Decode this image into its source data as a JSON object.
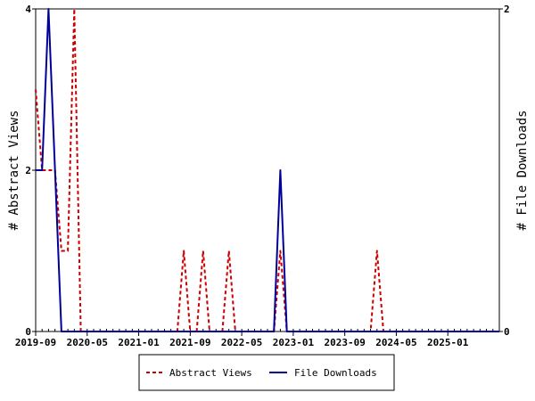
{
  "chart_data": {
    "type": "line",
    "title": "",
    "xlabel": "",
    "ylabel_left": "# Abstract Views",
    "ylabel_right": "# File Downloads",
    "x_range": [
      "2019-09",
      "2025-09"
    ],
    "x_ticks": [
      "2019-09",
      "2020-05",
      "2021-01",
      "2021-09",
      "2022-05",
      "2023-01",
      "2023-09",
      "2024-05",
      "2025-01"
    ],
    "ylim_left": [
      0,
      4
    ],
    "yticks_left": [
      "0",
      "2",
      "4"
    ],
    "ylim_right": [
      0,
      2
    ],
    "yticks_right": [
      "0",
      "2"
    ],
    "grid": false,
    "legend_position": "bottom-center",
    "series": [
      {
        "name": "Abstract Views",
        "axis": "left",
        "color": "#cc0000",
        "dash": "dashed",
        "points": [
          [
            "2019-09",
            3
          ],
          [
            "2019-10",
            2
          ],
          [
            "2019-11",
            2
          ],
          [
            "2019-12",
            2
          ],
          [
            "2020-01",
            1
          ],
          [
            "2020-02",
            1
          ],
          [
            "2020-03",
            4
          ],
          [
            "2020-04",
            0
          ],
          [
            "2021-07",
            0
          ],
          [
            "2021-08",
            1
          ],
          [
            "2021-09",
            0
          ],
          [
            "2021-10",
            0
          ],
          [
            "2021-11",
            1
          ],
          [
            "2021-12",
            0
          ],
          [
            "2022-02",
            0
          ],
          [
            "2022-03",
            1
          ],
          [
            "2022-04",
            0
          ],
          [
            "2022-10",
            0
          ],
          [
            "2022-11",
            1
          ],
          [
            "2022-12",
            0
          ],
          [
            "2024-01",
            0
          ],
          [
            "2024-02",
            1
          ],
          [
            "2024-03",
            0
          ],
          [
            "2025-09",
            0
          ]
        ]
      },
      {
        "name": "File Downloads",
        "axis": "right",
        "color": "#000099",
        "dash": "solid",
        "points": [
          [
            "2019-09",
            1
          ],
          [
            "2019-10",
            1
          ],
          [
            "2019-11",
            2
          ],
          [
            "2019-12",
            1
          ],
          [
            "2020-01",
            0
          ],
          [
            "2022-10",
            0
          ],
          [
            "2022-11",
            1
          ],
          [
            "2022-12",
            0
          ],
          [
            "2025-09",
            0
          ]
        ]
      }
    ]
  }
}
